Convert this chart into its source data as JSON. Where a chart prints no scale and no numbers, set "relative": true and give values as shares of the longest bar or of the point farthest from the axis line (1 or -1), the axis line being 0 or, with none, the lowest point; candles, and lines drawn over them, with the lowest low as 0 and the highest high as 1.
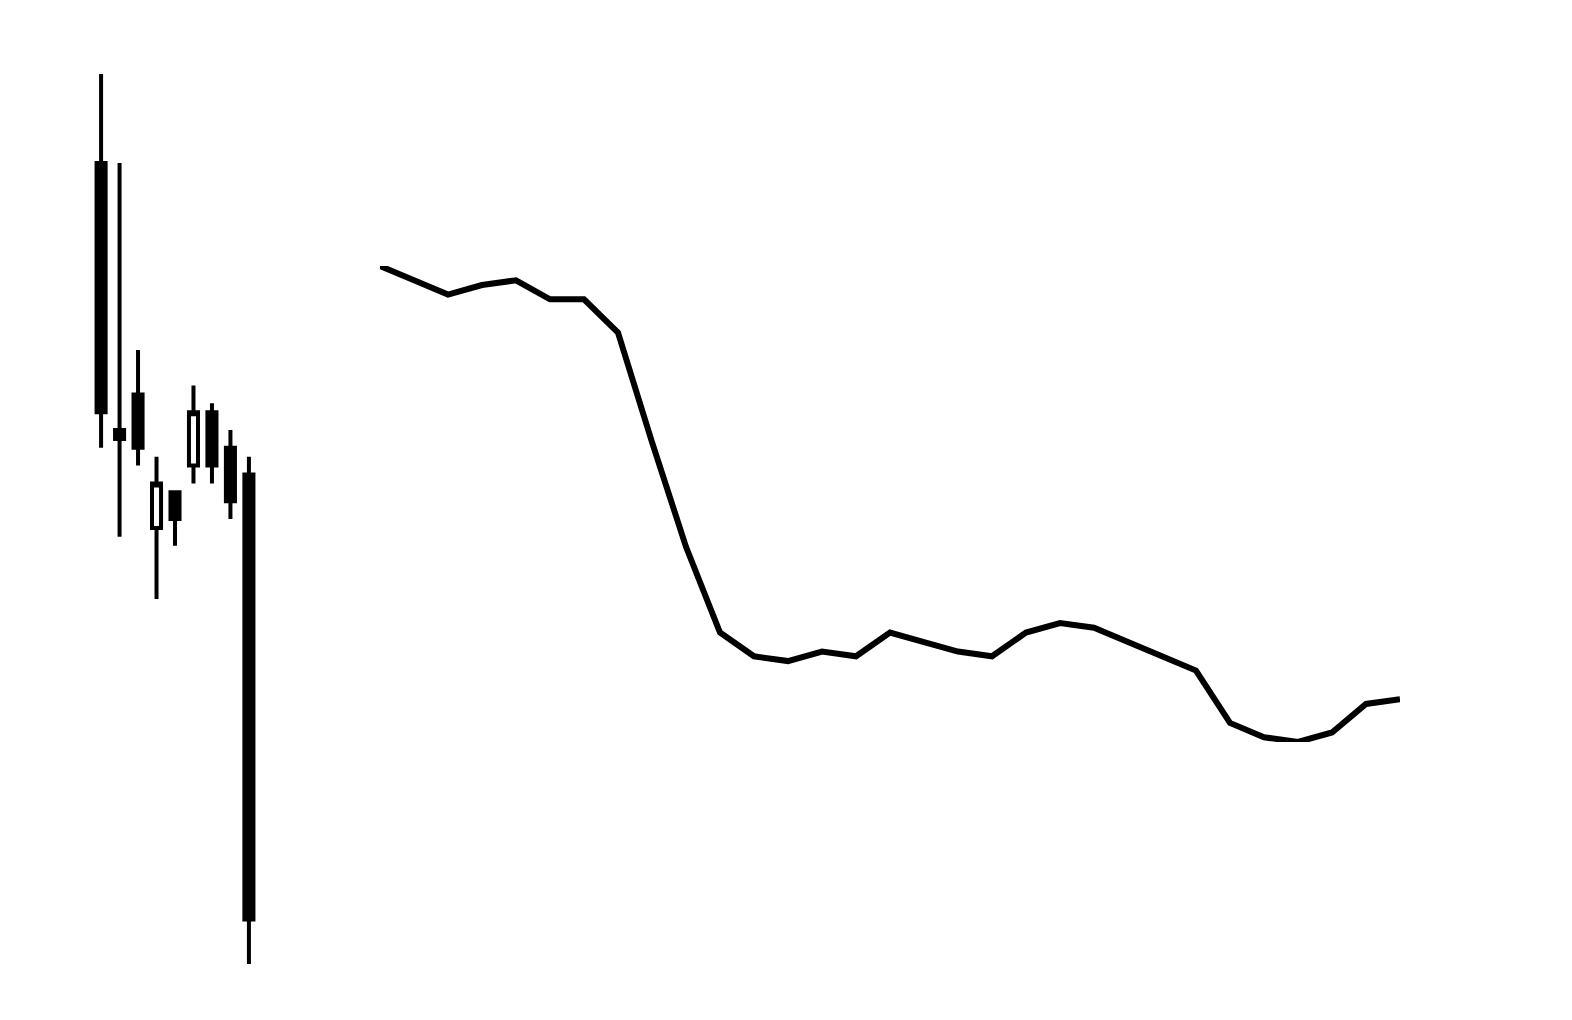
{
  "chart_data": [
    {
      "type": "candlestick",
      "relative": true,
      "categories": [
        null,
        null,
        null,
        null,
        null,
        null,
        null,
        null,
        null
      ],
      "color": "#000000",
      "ohlc": [
        [
          0.9,
          1,
          0.58,
          0.62
        ],
        [
          0.6,
          0.9,
          0.48,
          0.59
        ],
        [
          0.64,
          0.69,
          0.56,
          0.58
        ],
        [
          0.49,
          0.57,
          0.41,
          0.54
        ],
        [
          0.53,
          0.53,
          0.47,
          0.5
        ],
        [
          0.56,
          0.65,
          0.54,
          0.62
        ],
        [
          0.62,
          0.63,
          0.54,
          0.56
        ],
        [
          0.58,
          0.6,
          0.5,
          0.52
        ],
        [
          0.55,
          0.57,
          0,
          0.05
        ]
      ]
    },
    {
      "type": "line",
      "relative": true,
      "categories": [
        null,
        null,
        null,
        null,
        null,
        null,
        null,
        null,
        null,
        null,
        null,
        null,
        null,
        null,
        null,
        null,
        null,
        null,
        null,
        null,
        null,
        null,
        null,
        null,
        null,
        null,
        null,
        null,
        null,
        null,
        null
      ],
      "color": "#000000",
      "values": [
        1,
        0.97,
        0.94,
        0.96,
        0.97,
        0.93,
        0.93,
        0.86,
        0.63,
        0.41,
        0.23,
        0.18,
        0.17,
        0.19,
        0.18,
        0.23,
        0.21,
        0.19,
        0.18,
        0.23,
        0.25,
        0.24,
        0.21,
        0.18,
        0.15,
        0.04,
        0.01,
        0,
        0.02,
        0.08,
        0.09
      ]
    }
  ]
}
